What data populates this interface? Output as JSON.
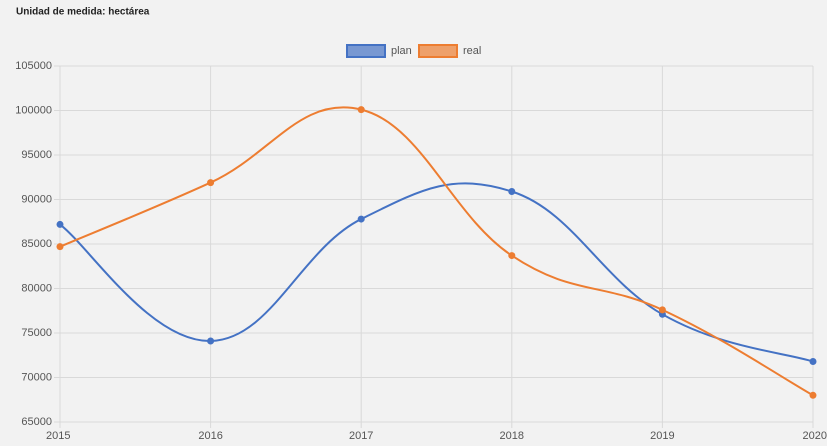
{
  "chart_data": {
    "type": "line",
    "title": "Unidad de medida: hectárea",
    "categories": [
      "2015",
      "2016",
      "2017",
      "2018",
      "2019",
      "2020"
    ],
    "series": [
      {
        "name": "plan",
        "color": "#4472c4",
        "values": [
          87200,
          74100,
          87800,
          90900,
          77100,
          71800
        ]
      },
      {
        "name": "real",
        "color": "#ed7d31",
        "values": [
          84700,
          91900,
          100100,
          83700,
          77600,
          68000
        ]
      }
    ],
    "ylim": [
      65000,
      105000
    ],
    "yticks": [
      65000,
      70000,
      75000,
      80000,
      85000,
      90000,
      95000,
      100000,
      105000
    ],
    "grid": true,
    "legend": "top"
  }
}
